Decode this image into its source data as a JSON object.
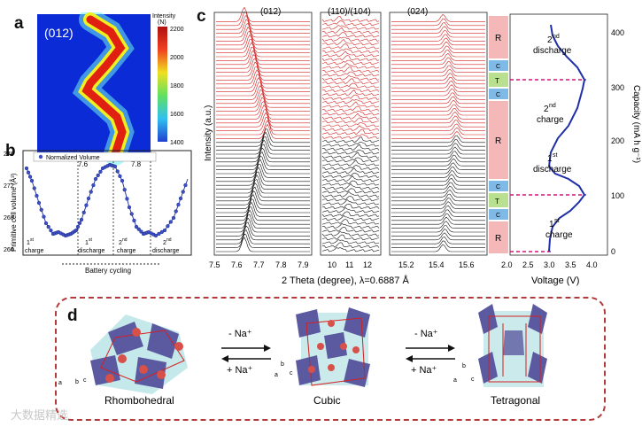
{
  "panel_a": {
    "label": "a",
    "title": "(012)",
    "colorbar_title": "Intensity",
    "colorbar_unit": "(N)",
    "colorbar_ticks": [
      "2200",
      "2000",
      "1800",
      "1600",
      "1400"
    ],
    "xticks": [
      "7.6",
      "7.8"
    ],
    "colors": {
      "background": "#0a2bd6",
      "hot": "#e02010",
      "warm": "#f0f020"
    }
  },
  "panel_b": {
    "label": "b",
    "ylabel": "Primitive cell volume (Å³)",
    "xlabel": "Battery cycling",
    "legend": "Normalized Volume",
    "yticks": [
      "276",
      "272",
      "268",
      "264"
    ],
    "segment_labels": [
      {
        "num": "1",
        "sup": "st",
        "word": "charge"
      },
      {
        "num": "1",
        "sup": "st",
        "word": "discharge"
      },
      {
        "num": "2",
        "sup": "nd",
        "word": "charge"
      },
      {
        "num": "2",
        "sup": "nd",
        "word": "discharge"
      }
    ]
  },
  "panel_c": {
    "label": "c",
    "ylabel": "Intensity (a.u.)",
    "xlabel": "2 Theta (degree), λ=0.6887 Å",
    "peak_titles": [
      "(012)",
      "(110)/(104)",
      "(024)"
    ],
    "xticks_1": [
      "7.5",
      "7.6",
      "7.7",
      "7.8",
      "7.9"
    ],
    "xticks_2": [
      "10",
      "11",
      "12"
    ],
    "xticks_3": [
      "15.2",
      "15.4",
      "15.6"
    ],
    "phase_labels": [
      "R",
      "C",
      "T",
      "C",
      "R",
      "C",
      "T",
      "C",
      "R"
    ],
    "capacity_ylabel": "Capacity (mA h g⁻¹)",
    "capacity_yticks": [
      "400",
      "300",
      "200",
      "100",
      "0"
    ],
    "voltage_xlabel": "Voltage (V)",
    "voltage_xticks": [
      "2.0",
      "2.5",
      "3.0",
      "3.5",
      "4.0"
    ],
    "curve_labels": [
      {
        "num": "2",
        "sup": "nd",
        "word": "discharge"
      },
      {
        "num": "2",
        "sup": "nd",
        "word": "charge"
      },
      {
        "num": "1",
        "sup": "st",
        "word": "discharge"
      },
      {
        "num": "1",
        "sup": "st",
        "word": "charge"
      }
    ],
    "colors": {
      "R": "#f4b8b8",
      "C": "#7fb9e6",
      "T": "#b9e090",
      "red_curve": "#d42020",
      "black_curve": "#111111",
      "voltage": "#1f2fa8",
      "dash": "#d4147c"
    }
  },
  "panel_d": {
    "label": "d",
    "structures": [
      "Rhombohedral",
      "Cubic",
      "Tetragonal"
    ],
    "arrows": [
      {
        "top": "- Na⁺",
        "bottom": "+ Na⁺"
      },
      {
        "top": "- Na⁺",
        "bottom": "+ Na⁺"
      }
    ],
    "axes": {
      "a": "a",
      "b": "b",
      "c": "c"
    },
    "watermark": "大数据精选",
    "colors": {
      "border": "#b33a3a",
      "octa": "#5b5aa0",
      "octa_light": "#9fd8dc",
      "sphere": "#d8504a"
    }
  }
}
